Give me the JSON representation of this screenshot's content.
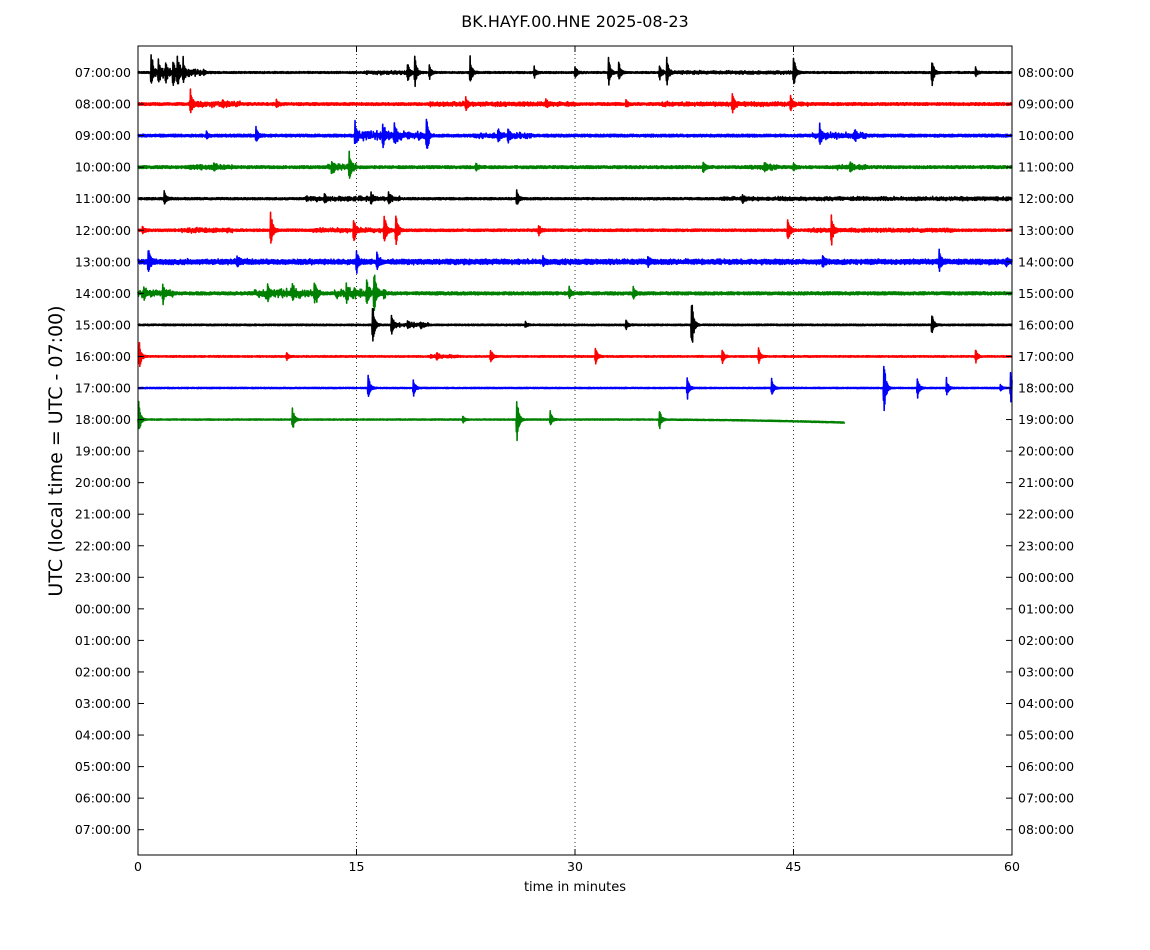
{
  "chart_data": {
    "type": "line",
    "title": "BK.HAYF.00.HNE 2025-08-23",
    "xlabel": "time in minutes",
    "ylabel": "UTC (local time = UTC - 07:00)",
    "xlim": [
      0,
      60
    ],
    "x_ticks": [
      "0",
      "15",
      "30",
      "45",
      "60"
    ],
    "grid": "vertical dotted lines at 15, 30, 45",
    "left_labels": [
      "07:00:00",
      "08:00:00",
      "09:00:00",
      "10:00:00",
      "11:00:00",
      "12:00:00",
      "13:00:00",
      "14:00:00",
      "15:00:00",
      "16:00:00",
      "17:00:00",
      "18:00:00",
      "19:00:00",
      "20:00:00",
      "21:00:00",
      "22:00:00",
      "23:00:00",
      "00:00:00",
      "01:00:00",
      "02:00:00",
      "03:00:00",
      "04:00:00",
      "05:00:00",
      "06:00:00",
      "07:00:00"
    ],
    "right_labels": [
      "08:00:00",
      "09:00:00",
      "10:00:00",
      "11:00:00",
      "12:00:00",
      "13:00:00",
      "14:00:00",
      "15:00:00",
      "16:00:00",
      "17:00:00",
      "18:00:00",
      "19:00:00",
      "20:00:00",
      "21:00:00",
      "22:00:00",
      "23:00:00",
      "00:00:00",
      "01:00:00",
      "02:00:00",
      "03:00:00",
      "04:00:00",
      "05:00:00",
      "06:00:00",
      "07:00:00",
      "08:00:00"
    ],
    "colors": [
      "#000000",
      "#ff0000",
      "#0000ff",
      "#008000"
    ],
    "traces": [
      {
        "row": 0,
        "color": "#000000",
        "end": 60,
        "noise": 0.6,
        "events": [
          [
            0.9,
            20
          ],
          [
            1.4,
            14
          ],
          [
            1.9,
            12
          ],
          [
            2.4,
            16
          ],
          [
            2.7,
            20
          ],
          [
            3.1,
            12
          ],
          [
            4.5,
            3
          ],
          [
            18.5,
            10
          ],
          [
            19.0,
            18
          ],
          [
            20.0,
            8
          ],
          [
            22.8,
            16
          ],
          [
            27.2,
            6
          ],
          [
            30.0,
            7
          ],
          [
            32.3,
            16
          ],
          [
            33.0,
            12
          ],
          [
            35.8,
            9
          ],
          [
            36.3,
            16
          ],
          [
            45.0,
            20
          ],
          [
            54.5,
            16
          ],
          [
            57.5,
            5
          ]
        ],
        "bursts": [
          [
            1.0,
            4.5,
            4
          ],
          [
            15.5,
            19,
            2
          ],
          [
            36,
            45,
            1.3
          ]
        ]
      },
      {
        "row": 1,
        "color": "#ff0000",
        "end": 60,
        "noise": 0.9,
        "events": [
          [
            3.6,
            12
          ],
          [
            5.8,
            4
          ],
          [
            9.5,
            4
          ],
          [
            22.5,
            6
          ],
          [
            28,
            4
          ],
          [
            33.5,
            4
          ],
          [
            40.8,
            14
          ],
          [
            44.8,
            9
          ]
        ],
        "bursts": [
          [
            3.5,
            7,
            2.5
          ],
          [
            20,
            30,
            1.6
          ],
          [
            36,
            46,
            1.5
          ]
        ]
      },
      {
        "row": 2,
        "color": "#0000ff",
        "end": 60,
        "noise": 0.9,
        "events": [
          [
            4.7,
            4
          ],
          [
            8.1,
            8
          ],
          [
            14.9,
            14
          ],
          [
            16.8,
            14
          ],
          [
            17.6,
            10
          ],
          [
            19.8,
            16
          ],
          [
            24.7,
            8
          ],
          [
            25.4,
            7
          ],
          [
            46.8,
            12
          ],
          [
            49.2,
            5
          ]
        ],
        "bursts": [
          [
            15,
            20,
            5
          ],
          [
            23,
            27,
            2.5
          ],
          [
            46.3,
            50,
            3
          ]
        ]
      },
      {
        "row": 3,
        "color": "#008000",
        "end": 60,
        "noise": 0.9,
        "events": [
          [
            5.2,
            4
          ],
          [
            13.3,
            7
          ],
          [
            14.5,
            16
          ],
          [
            23.2,
            4
          ],
          [
            38.8,
            6
          ],
          [
            43.0,
            5
          ],
          [
            45.0,
            4
          ],
          [
            48.9,
            6
          ]
        ],
        "bursts": [
          [
            3.5,
            6.5,
            2
          ],
          [
            13,
            15,
            3
          ],
          [
            42,
            44,
            2
          ],
          [
            48,
            50,
            2
          ]
        ]
      },
      {
        "row": 4,
        "color": "#000000",
        "end": 60,
        "noise": 0.7,
        "events": [
          [
            1.8,
            8
          ],
          [
            12.8,
            5
          ],
          [
            16.0,
            6
          ],
          [
            17.2,
            6
          ],
          [
            26.0,
            9
          ],
          [
            41.5,
            5
          ]
        ],
        "bursts": [
          [
            11.5,
            18,
            2.2
          ],
          [
            40,
            60,
            1.5
          ]
        ]
      },
      {
        "row": 5,
        "color": "#ff0000",
        "end": 60,
        "noise": 0.8,
        "events": [
          [
            0.3,
            4
          ],
          [
            9.1,
            24
          ],
          [
            14.8,
            16
          ],
          [
            16.9,
            20
          ],
          [
            17.7,
            18
          ],
          [
            27.5,
            7
          ],
          [
            44.6,
            16
          ],
          [
            47.6,
            18
          ]
        ],
        "bursts": [
          [
            3,
            6.5,
            2
          ],
          [
            12,
            18,
            1.8
          ],
          [
            46,
            56,
            1.5
          ]
        ]
      },
      {
        "row": 6,
        "color": "#0000ff",
        "end": 60,
        "noise": 1.4,
        "events": [
          [
            0.7,
            16
          ],
          [
            6.8,
            6
          ],
          [
            15.0,
            12
          ],
          [
            16.4,
            9
          ],
          [
            27.8,
            5
          ],
          [
            35.0,
            5
          ],
          [
            47.0,
            7
          ],
          [
            55.0,
            11
          ],
          [
            59.6,
            4
          ]
        ],
        "bursts": [
          [
            0,
            60,
            1.2
          ]
        ]
      },
      {
        "row": 7,
        "color": "#008000",
        "end": 60,
        "noise": 1.0,
        "events": [
          [
            0.4,
            6
          ],
          [
            1.7,
            10
          ],
          [
            8.9,
            9
          ],
          [
            10.6,
            10
          ],
          [
            12.1,
            10
          ],
          [
            14.3,
            9
          ],
          [
            15.7,
            12
          ],
          [
            16.2,
            24
          ],
          [
            29.6,
            6
          ],
          [
            34.0,
            6
          ]
        ],
        "bursts": [
          [
            0,
            2.5,
            3
          ],
          [
            8,
            12.5,
            5
          ],
          [
            13.5,
            17,
            5
          ]
        ]
      },
      {
        "row": 8,
        "color": "#000000",
        "end": 60,
        "noise": 0.5,
        "events": [
          [
            16.1,
            24
          ],
          [
            17.4,
            12
          ],
          [
            18.5,
            4
          ],
          [
            19.4,
            3
          ],
          [
            26.6,
            3
          ],
          [
            33.5,
            5
          ],
          [
            38.0,
            32
          ],
          [
            54.5,
            12
          ]
        ],
        "bursts": [
          [
            17.5,
            20,
            2.2
          ]
        ]
      },
      {
        "row": 9,
        "color": "#ff0000",
        "end": 60,
        "noise": 0.5,
        "events": [
          [
            0.1,
            14
          ],
          [
            10.2,
            4
          ],
          [
            20.5,
            4
          ],
          [
            24.2,
            9
          ],
          [
            31.4,
            10
          ],
          [
            40.1,
            8
          ],
          [
            42.6,
            9
          ],
          [
            57.5,
            8
          ]
        ],
        "bursts": [
          [
            20,
            22,
            1.5
          ]
        ]
      },
      {
        "row": 10,
        "color": "#0000ff",
        "end": 60,
        "noise": 0.4,
        "events": [
          [
            15.8,
            16
          ],
          [
            18.9,
            10
          ],
          [
            37.7,
            14
          ],
          [
            43.5,
            11
          ],
          [
            51.2,
            32
          ],
          [
            53.5,
            12
          ],
          [
            55.5,
            10
          ],
          [
            59.2,
            4
          ],
          [
            59.9,
            18
          ]
        ],
        "bursts": []
      },
      {
        "row": 11,
        "color": "#008000",
        "end": 48.5,
        "noise": 0.4,
        "drift": 3,
        "events": [
          [
            0.05,
            18
          ],
          [
            10.6,
            14
          ],
          [
            22.3,
            4
          ],
          [
            26.0,
            28
          ],
          [
            28.3,
            9
          ],
          [
            35.8,
            12
          ]
        ],
        "bursts": []
      }
    ]
  }
}
